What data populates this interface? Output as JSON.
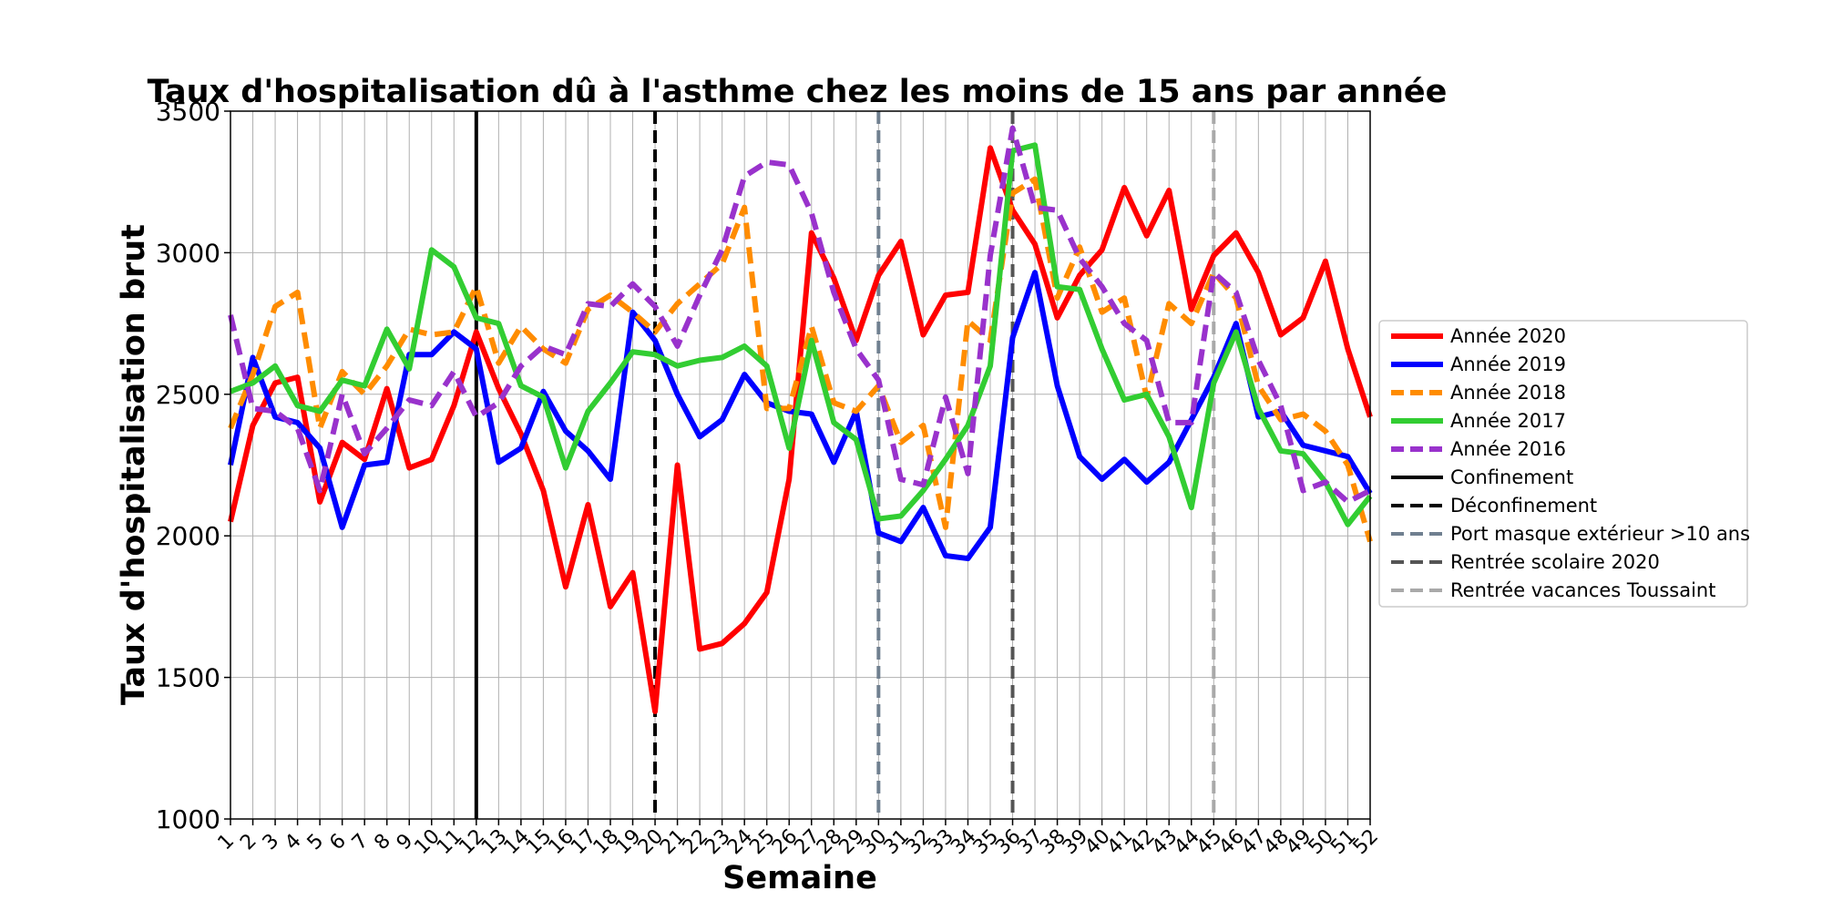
{
  "chart_data": {
    "type": "line",
    "title": "Taux d'hospitalisation dû à l'asthme chez les moins de 15 ans par année",
    "xlabel": "Semaine",
    "ylabel": "Taux d'hospitalisation brut",
    "x": [
      1,
      2,
      3,
      4,
      5,
      6,
      7,
      8,
      9,
      10,
      11,
      12,
      13,
      14,
      15,
      16,
      17,
      18,
      19,
      20,
      21,
      22,
      23,
      24,
      25,
      26,
      27,
      28,
      29,
      30,
      31,
      32,
      33,
      34,
      35,
      36,
      37,
      38,
      39,
      40,
      41,
      42,
      43,
      44,
      45,
      46,
      47,
      48,
      49,
      50,
      51,
      52
    ],
    "xlim": [
      1,
      52
    ],
    "ylim": [
      1000,
      3500
    ],
    "yticks": [
      1000,
      1500,
      2000,
      2500,
      3000,
      3500
    ],
    "grid": true,
    "legend_position": "center right, outside plot",
    "series": [
      {
        "name": "Année 2020",
        "color": "#ff0000",
        "style": "solid",
        "values": [
          2050,
          2390,
          2540,
          2560,
          2120,
          2330,
          2270,
          2520,
          2240,
          2270,
          2460,
          2720,
          2520,
          2360,
          2160,
          1820,
          2110,
          1750,
          1870,
          1380,
          2250,
          1600,
          1620,
          1690,
          1800,
          2200,
          3070,
          2910,
          2690,
          2920,
          3040,
          2710,
          2850,
          2860,
          3370,
          3150,
          3030,
          2770,
          2920,
          3010,
          3230,
          3060,
          3220,
          2800,
          2990,
          3070,
          2930,
          2710,
          2770,
          2970,
          2660,
          2420
        ]
      },
      {
        "name": "Année 2019",
        "color": "#0000ff",
        "style": "solid",
        "values": [
          2250,
          2630,
          2420,
          2400,
          2310,
          2030,
          2250,
          2260,
          2640,
          2640,
          2720,
          2660,
          2260,
          2310,
          2510,
          2370,
          2300,
          2200,
          2790,
          2690,
          2500,
          2350,
          2410,
          2570,
          2470,
          2440,
          2430,
          2260,
          2440,
          2010,
          1980,
          2100,
          1930,
          1920,
          2030,
          2700,
          2930,
          2530,
          2280,
          2200,
          2270,
          2190,
          2260,
          2410,
          2560,
          2750,
          2420,
          2440,
          2320,
          2300,
          2280,
          2150
        ]
      },
      {
        "name": "Année 2018",
        "color": "#ff8c00",
        "style": "dashed",
        "values": [
          2380,
          2570,
          2810,
          2860,
          2380,
          2580,
          2500,
          2600,
          2730,
          2710,
          2720,
          2880,
          2610,
          2740,
          2660,
          2610,
          2800,
          2850,
          2790,
          2720,
          2820,
          2890,
          2960,
          3160,
          2450,
          2450,
          2740,
          2470,
          2440,
          2530,
          2330,
          2390,
          2030,
          2760,
          2690,
          3210,
          3260,
          2840,
          3020,
          2790,
          2840,
          2490,
          2820,
          2750,
          2930,
          2840,
          2530,
          2410,
          2430,
          2370,
          2250,
          1980
        ]
      },
      {
        "name": "Année 2017",
        "color": "#32cd32",
        "style": "solid",
        "values": [
          2510,
          2540,
          2600,
          2460,
          2440,
          2550,
          2530,
          2730,
          2590,
          3010,
          2950,
          2770,
          2750,
          2530,
          2490,
          2240,
          2440,
          2540,
          2650,
          2640,
          2600,
          2620,
          2630,
          2670,
          2600,
          2310,
          2690,
          2400,
          2340,
          2060,
          2070,
          2160,
          2270,
          2390,
          2600,
          3360,
          3380,
          2880,
          2870,
          2660,
          2480,
          2500,
          2350,
          2100,
          2540,
          2720,
          2450,
          2300,
          2290,
          2190,
          2040,
          2140
        ]
      },
      {
        "name": "Année 2016",
        "color": "#9932cc",
        "style": "dashed",
        "values": [
          2780,
          2450,
          2440,
          2380,
          2160,
          2500,
          2290,
          2380,
          2480,
          2460,
          2580,
          2420,
          2470,
          2600,
          2670,
          2640,
          2820,
          2810,
          2890,
          2810,
          2670,
          2850,
          3010,
          3270,
          3320,
          3310,
          3140,
          2860,
          2660,
          2550,
          2200,
          2180,
          2490,
          2220,
          2990,
          3440,
          3160,
          3150,
          2980,
          2880,
          2750,
          2690,
          2400,
          2400,
          2930,
          2860,
          2620,
          2460,
          2160,
          2190,
          2120,
          2160
        ]
      }
    ],
    "vertical_markers": [
      {
        "name": "Confinement",
        "x": 12,
        "color": "#000000",
        "style": "solid"
      },
      {
        "name": "Déconfinement",
        "x": 20,
        "color": "#000000",
        "style": "dashed"
      },
      {
        "name": "Port masque extérieur >10 ans",
        "x": 30,
        "color": "#708090",
        "style": "dashed"
      },
      {
        "name": "Rentrée scolaire 2020",
        "x": 36,
        "color": "#555555",
        "style": "dashed"
      },
      {
        "name": "Rentrée vacances Toussaint",
        "x": 45,
        "color": "#a9a9a9",
        "style": "dashed"
      }
    ]
  }
}
